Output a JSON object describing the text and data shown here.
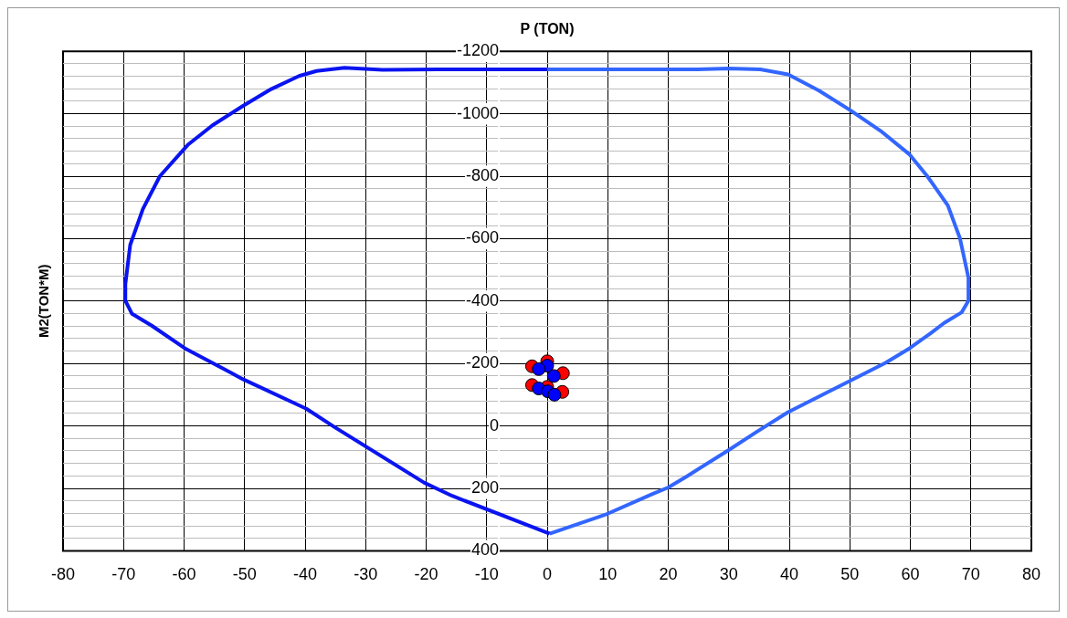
{
  "chart_data": {
    "type": "line",
    "title": "P (TON)",
    "ylabel": "M2(TON*M)",
    "xlim": [
      -80,
      80
    ],
    "xticks": [
      -80,
      -70,
      -60,
      -50,
      -40,
      -30,
      -20,
      -10,
      0,
      10,
      20,
      30,
      40,
      50,
      60,
      70,
      80
    ],
    "ylim": [
      400,
      -1200
    ],
    "yticks": [
      -1200,
      {
        "value": -1160,
        "label": null
      },
      {
        "value": -1120,
        "label": null
      },
      {
        "value": -1080,
        "label": null
      },
      {
        "value": -1040,
        "label": null
      },
      -1000,
      {
        "value": -960,
        "label": null
      },
      {
        "value": -920,
        "label": null
      },
      {
        "value": -880,
        "label": null
      },
      {
        "value": -840,
        "label": null
      },
      -800,
      {
        "value": -760,
        "label": null
      },
      {
        "value": -720,
        "label": null
      },
      {
        "value": -680,
        "label": null
      },
      {
        "value": -640,
        "label": null
      },
      -600,
      {
        "value": -560,
        "label": null
      },
      {
        "value": -520,
        "label": null
      },
      {
        "value": -480,
        "label": null
      },
      {
        "value": -440,
        "label": null
      },
      -400,
      {
        "value": -360,
        "label": null
      },
      {
        "value": -320,
        "label": null
      },
      {
        "value": -280,
        "label": null
      },
      {
        "value": -240,
        "label": null
      },
      -200,
      {
        "value": -160,
        "label": null
      },
      {
        "value": -120,
        "label": null
      },
      {
        "value": -80,
        "label": null
      },
      {
        "value": -40,
        "label": null
      },
      0,
      {
        "value": 40,
        "label": null
      },
      {
        "value": 80,
        "label": null
      },
      {
        "value": 120,
        "label": null
      },
      {
        "value": 160,
        "label": null
      },
      200,
      {
        "value": 240,
        "label": null
      },
      {
        "value": 280,
        "label": null
      },
      {
        "value": 320,
        "label": null
      },
      {
        "value": 360,
        "label": null
      },
      400
    ],
    "grid": true,
    "legend": false,
    "series": [
      {
        "type": "line",
        "color": "#0a14f0",
        "marker": "none",
        "x": [
          0,
          -18,
          -27.2,
          -33.5,
          -38.1,
          -41,
          -45.6,
          -50.2,
          -55.3,
          -59.4,
          -64,
          -66.8,
          -68.9,
          -69.7,
          -69.7,
          -68.6,
          -65.4,
          -59.9,
          -50.2,
          -39.8,
          -35.2,
          -20.3,
          -15.7,
          0.4
        ],
        "values": [
          -1142,
          -1142,
          -1141,
          -1147,
          -1137,
          -1121,
          -1079,
          -1026,
          -963,
          -900,
          -800,
          -695,
          -580,
          -454,
          -401,
          -359,
          -322,
          -249,
          -149,
          -55,
          3,
          182,
          224,
          345
        ]
      },
      {
        "type": "line",
        "color": "#3366ff",
        "marker": "none",
        "x": [
          0.4,
          9.9,
          17.4,
          20,
          23.1,
          30,
          34.6,
          39.8,
          49.5,
          55.9,
          59.9,
          63.3,
          65.6,
          68.5,
          69.6,
          69.6,
          68.2,
          66.2,
          62.8,
          59.9,
          55.3,
          50.1,
          44.9,
          39.8,
          35.2,
          30,
          24.8,
          9.9,
          0
        ],
        "values": [
          345,
          282,
          218,
          197,
          161,
          77,
          19,
          -44,
          -139,
          -202,
          -249,
          -296,
          -330,
          -364,
          -401,
          -475,
          -601,
          -706,
          -800,
          -869,
          -942,
          -1011,
          -1074,
          -1126,
          -1142,
          -1145,
          -1142,
          -1142,
          -1142
        ]
      },
      {
        "type": "scatter",
        "color": "#0000ff",
        "marker": "circle",
        "x": [
          0,
          -1.4,
          1.1,
          -1.4,
          0.1,
          1.2
        ],
        "values": [
          -193,
          -182,
          -160,
          -120,
          -111,
          -100
        ]
      },
      {
        "type": "scatter",
        "color": "#ff0000",
        "marker": "circle",
        "x": [
          0,
          -2.5,
          2.6,
          -2.5,
          2.5,
          0
        ],
        "values": [
          -207,
          -191,
          -169,
          -131,
          -109,
          -125
        ]
      }
    ]
  }
}
